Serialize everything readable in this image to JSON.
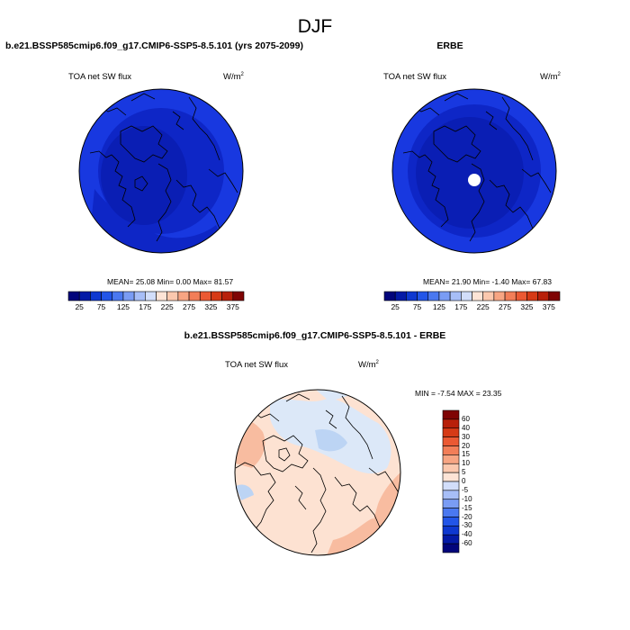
{
  "page": {
    "title": "DJF"
  },
  "panels": {
    "model": {
      "title": "b.e21.BSSP585cmip6.f09_g17.CMIP6-SSP5-8.5.101 (yrs 2075-2099)",
      "left_label": "TOA net SW flux",
      "units": "W/m",
      "units_sup": "2",
      "stats": "MEAN=  25.08  Min=   0.00  Max=  81.57",
      "fill_colors": {
        "outer": "#1838e0",
        "mid": "#0e26c6",
        "inner": "#0a1eb4"
      }
    },
    "obs": {
      "title": "ERBE",
      "left_label": "TOA net SW flux",
      "units": "W/m",
      "units_sup": "2",
      "stats": "MEAN=  21.90  Min=  -1.40  Max=  67.83",
      "fill_colors": {
        "outer": "#1838e0",
        "mid": "#0e26c6",
        "inner": "#0a1eb4",
        "missing": "#ffffff"
      }
    },
    "diff": {
      "title": "b.e21.BSSP585cmip6.f09_g17.CMIP6-SSP5-8.5.101 - ERBE",
      "left_label": "TOA net SW flux",
      "units": "W/m",
      "units_sup": "2",
      "stats": "MIN =  -7.54 MAX =  23.35",
      "fill_colors": {
        "base": "#fde2d2",
        "positive": "#f8bca0",
        "strong_positive": "#f07d57",
        "max": "#e0461e",
        "negative": "#dce8f8",
        "strong_negative": "#bcd4f4"
      }
    }
  },
  "colorbars": {
    "abs": {
      "labels": [
        "25",
        "75",
        "125",
        "175",
        "225",
        "275",
        "325",
        "375"
      ],
      "colors": [
        "#02057b",
        "#041aa6",
        "#0e38d0",
        "#2255e8",
        "#4a78f0",
        "#7a9cf4",
        "#a7bef7",
        "#d2defa",
        "#fde4d6",
        "#fbc8ae",
        "#f7a583",
        "#f27e58",
        "#eb5933",
        "#d63a16",
        "#b8200a",
        "#7f0404"
      ]
    },
    "diff": {
      "labels": [
        "60",
        "40",
        "30",
        "20",
        "15",
        "10",
        "5",
        "0",
        "-5",
        "-10",
        "-15",
        "-20",
        "-30",
        "-40",
        "-60"
      ],
      "colors": [
        "#7f0404",
        "#b8200a",
        "#d63a16",
        "#eb5933",
        "#f27e58",
        "#f7a583",
        "#fbc8ae",
        "#fde4d6",
        "#d2defa",
        "#a7bef7",
        "#7a9cf4",
        "#4a78f0",
        "#2255e8",
        "#0e38d0",
        "#041aa6",
        "#02057b"
      ]
    }
  },
  "chart_data": [
    {
      "type": "heatmap",
      "panel": "model",
      "title": "b.e21.BSSP585cmip6.f09_g17.CMIP6-SSP5-8.5.101 (yrs 2075-2099)",
      "variable": "TOA net SW flux",
      "units": "W/m2",
      "projection": "polar stereographic (north)",
      "stats": {
        "mean": 25.08,
        "min": 0.0,
        "max": 81.57
      },
      "levels": [
        25,
        75,
        125,
        175,
        225,
        275,
        325,
        375
      ]
    },
    {
      "type": "heatmap",
      "panel": "obs",
      "title": "ERBE",
      "variable": "TOA net SW flux",
      "units": "W/m2",
      "projection": "polar stereographic (north)",
      "stats": {
        "mean": 21.9,
        "min": -1.4,
        "max": 67.83
      },
      "levels": [
        25,
        75,
        125,
        175,
        225,
        275,
        325,
        375
      ]
    },
    {
      "type": "heatmap",
      "panel": "diff",
      "title": "b.e21.BSSP585cmip6.f09_g17.CMIP6-SSP5-8.5.101 - ERBE",
      "variable": "TOA net SW flux",
      "units": "W/m2",
      "projection": "polar stereographic (north)",
      "stats": {
        "min": -7.54,
        "max": 23.35
      },
      "levels": [
        -60,
        -40,
        -30,
        -20,
        -15,
        -10,
        -5,
        0,
        5,
        10,
        15,
        20,
        30,
        40,
        60
      ]
    }
  ]
}
